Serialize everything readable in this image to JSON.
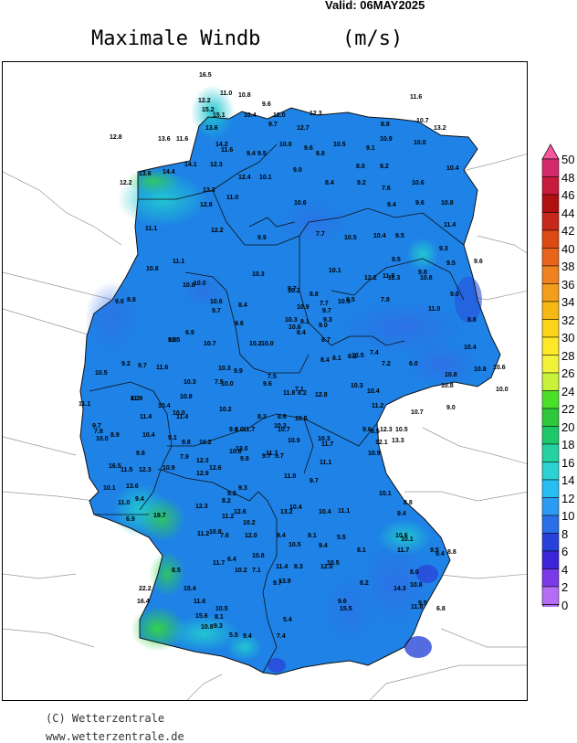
{
  "header": {
    "valid": "Valid: 06MAY2025",
    "title": "Maximale Windb",
    "unit": "(m/s)"
  },
  "colorbar": {
    "levels": [
      "50",
      "48",
      "46",
      "44",
      "42",
      "40",
      "38",
      "36",
      "34",
      "32",
      "30",
      "28",
      "26",
      "24",
      "22",
      "20",
      "18",
      "16",
      "14",
      "12",
      "10",
      "8",
      "6",
      "4",
      "2",
      "0"
    ],
    "colors": [
      "#f4579a",
      "#d42a6a",
      "#c81a3a",
      "#b01010",
      "#c8281a",
      "#dc4a14",
      "#e8641a",
      "#ee8220",
      "#f29e1a",
      "#f6b814",
      "#fbd41a",
      "#fde82a",
      "#f2f23a",
      "#c8f23a",
      "#4ae02a",
      "#2ec83a",
      "#1ec86a",
      "#26d2a2",
      "#2ad2d2",
      "#28bef2",
      "#2c9cf2",
      "#2a6ee8",
      "#2840dc",
      "#3a26d8",
      "#7a3ae8",
      "#b46ef4"
    ]
  },
  "map_values": [
    "16.5",
    "11.0",
    "10.8",
    "9.6",
    "12.2",
    "15.2",
    "15.1",
    "10.4",
    "12.0",
    "12.3",
    "11.6",
    "10.7",
    "13.2",
    "8.8",
    "9.7",
    "12.7",
    "13.6",
    "10.9",
    "9.1",
    "12.8",
    "13.6",
    "11.6",
    "14.2",
    "11.6",
    "9.4",
    "9.5",
    "10.0",
    "9.6",
    "8.8",
    "10.5",
    "10.0",
    "14.1",
    "12.3",
    "12.2",
    "13.6",
    "14.4",
    "12.4",
    "10.1",
    "9.0",
    "8.0",
    "9.2",
    "10.4",
    "13.3",
    "8.4",
    "9.2",
    "7.6",
    "10.6",
    "12.8",
    "11.0",
    "10.6",
    "9.4",
    "9.6",
    "10.8",
    "11.1",
    "12.2",
    "9.9",
    "7.7",
    "10.5",
    "10.4",
    "9.5",
    "11.4",
    "10.8",
    "11.1",
    "9.5",
    "9.3",
    "10.1",
    "12.2",
    "11.3",
    "9.8",
    "10.8",
    "9.6",
    "10.0",
    "10.3",
    "10.2",
    "11.8",
    "9.5",
    "6.9",
    "10.6",
    "9.7",
    "8.8",
    "8.4",
    "8.8",
    "10.8",
    "9.7",
    "9.0",
    "9.7",
    "9.0",
    "7.7",
    "10.5",
    "11.5",
    "10.9",
    "9.3",
    "8.5",
    "7.8",
    "8.8",
    "9.6",
    "10.3",
    "9.0",
    "10.6",
    "8.1",
    "11.0",
    "8.7",
    "9.8",
    "10.0",
    "8.4",
    "10.5",
    "10.4",
    "10.7",
    "10.2",
    "8.4",
    "8.1",
    "8.2",
    "7.4",
    "7.2",
    "6.0",
    "10.6",
    "9.2",
    "9.7",
    "11.6",
    "10.3",
    "9.9",
    "7.5",
    "10.8",
    "10.5",
    "10.3",
    "7.5",
    "9.6",
    "7.1",
    "10.8",
    "10.8",
    "10.0",
    "7.8",
    "8.3",
    "10.8",
    "10.0",
    "11.8",
    "8.2",
    "12.8",
    "10.3",
    "10.4",
    "11.1",
    "11.9",
    "10.4",
    "10.0",
    "10.2",
    "8.3",
    "8.6",
    "10.5",
    "11.2",
    "10.7",
    "9.0",
    "11.4",
    "11.4",
    "9.6",
    "10.2",
    "9.0",
    "11.7",
    "10.3",
    "10.7",
    "10.3",
    "9.6",
    "9.5",
    "12.3",
    "10.5",
    "9.7",
    "10.0",
    "8.9",
    "9.1",
    "9.8",
    "10.8",
    "9.7",
    "9.7",
    "11.1",
    "12.1",
    "13.3",
    "10.1",
    "9.8",
    "10.4",
    "7.9",
    "12.3",
    "11.7",
    "9.8",
    "10.9",
    "11.7",
    "10.9",
    "13.0",
    "12.3",
    "10.9",
    "16.5",
    "11.5",
    "13.6",
    "12.9",
    "12.6",
    "9.3",
    "11.0",
    "9.7",
    "10.1",
    "11.0",
    "9.4",
    "9.2",
    "12.3",
    "8.2",
    "10.4",
    "13.2",
    "11.2",
    "12.6",
    "10.2",
    "9.4",
    "9.1",
    "10.4",
    "11.1",
    "9.4",
    "8.8",
    "9.5",
    "6.9",
    "19.7",
    "10.8",
    "11.2",
    "7.6",
    "12.0",
    "10.5",
    "9.4",
    "5.5",
    "10.1",
    "10.6",
    "8.8",
    "8.5",
    "6.4",
    "11.7",
    "10.8",
    "11.4",
    "8.3",
    "12.0",
    "8.1",
    "9.4",
    "11.7",
    "10.2",
    "7.1",
    "13.9",
    "10.5",
    "8.2",
    "8.0",
    "6.8",
    "22.2",
    "15.4",
    "11.6",
    "10.5",
    "9.7",
    "9.6",
    "15.5",
    "11.8",
    "10.8",
    "15.6",
    "8.1",
    "5.4",
    "14.3",
    "9.5",
    "16.4",
    "10.8",
    "9.3",
    "5.5",
    "9.4",
    "7.4"
  ],
  "footer": {
    "copyright": "(C) Wetterzentrale",
    "website": "www.wetterzentrale.de"
  }
}
